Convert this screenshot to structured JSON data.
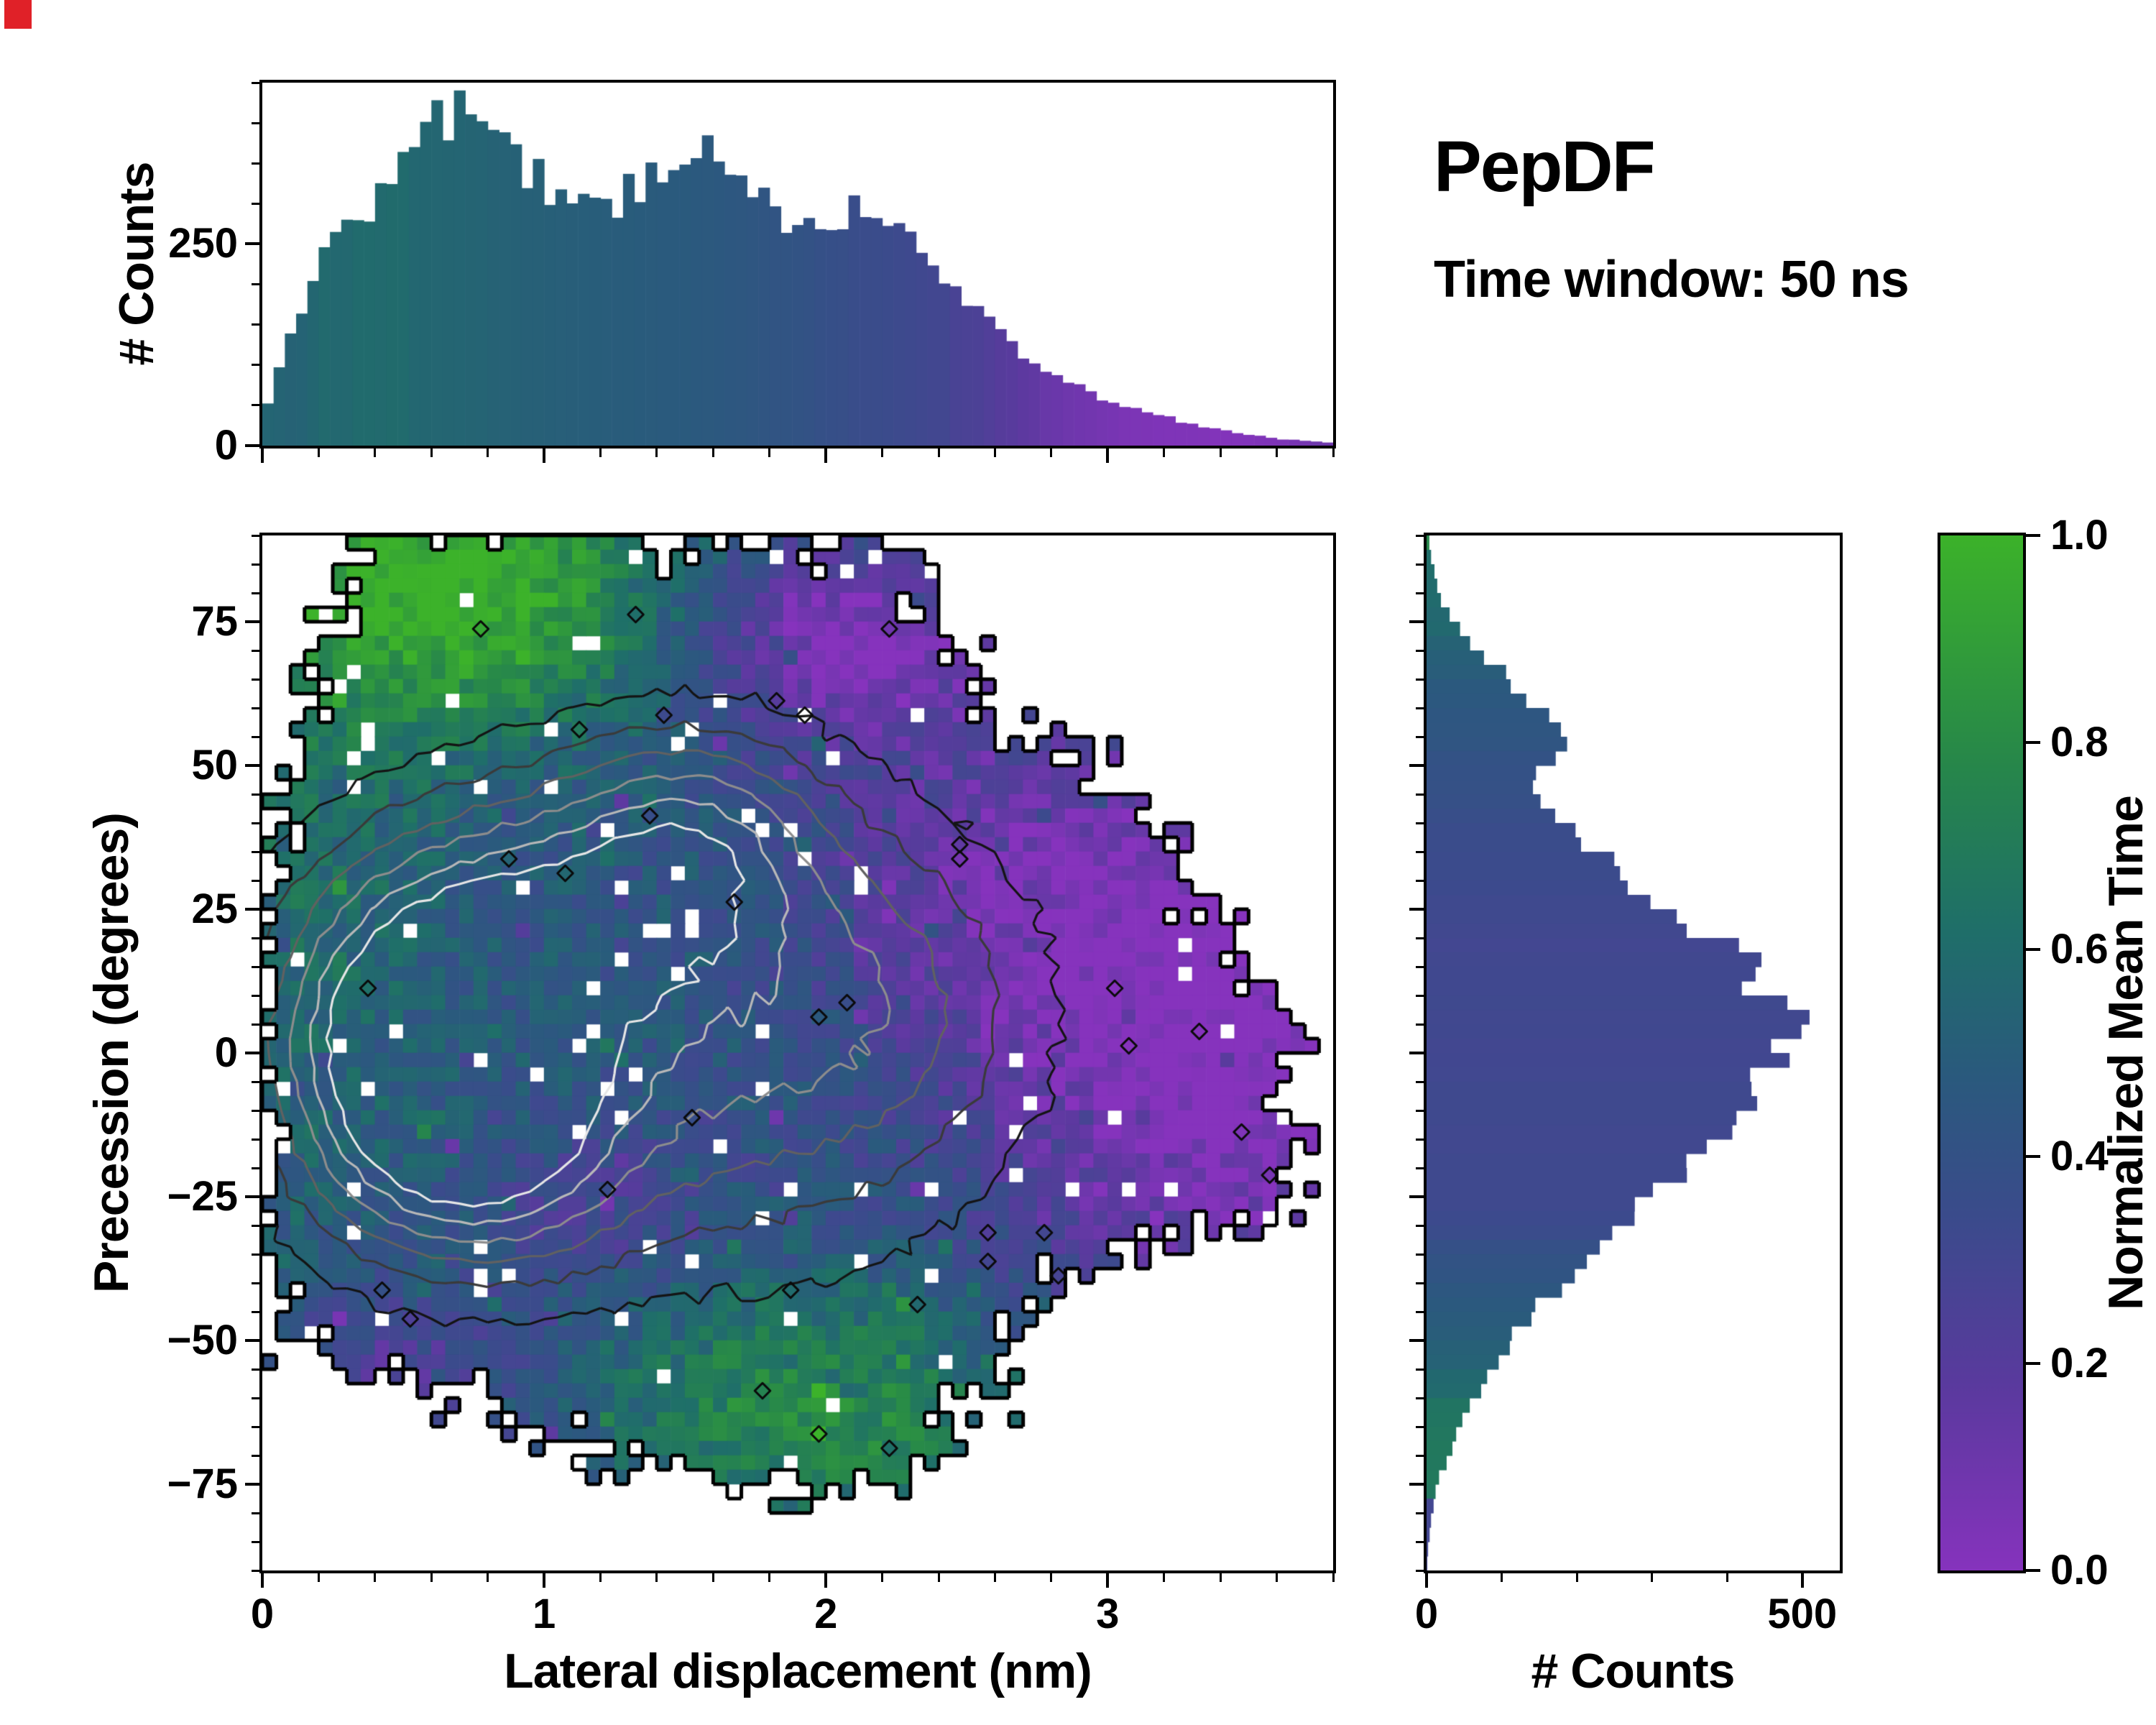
{
  "title": {
    "text": "PepDF",
    "subtitle": "Time window: 50 ns"
  },
  "artifacts": {
    "corner_marker_color": "#e02128"
  },
  "chart_data": [
    {
      "id": "top-histogram",
      "type": "bar",
      "orientation": "vertical",
      "ylabel": "# Counts",
      "xlim": [
        0,
        3.8
      ],
      "ylim": [
        0,
        450
      ],
      "bin_start": 0,
      "bin_width": 0.04,
      "yticks": {
        "values": [
          0,
          250
        ],
        "labels": [
          "0",
          "250"
        ]
      },
      "xticks": {
        "values": [
          0,
          1,
          2,
          3
        ],
        "labels": [
          "",
          "",
          "",
          ""
        ]
      },
      "xminor_step": 0.2,
      "yminor_step": 50,
      "bar_coloring": "colormap of column mean normalized time",
      "values": [
        55,
        95,
        140,
        175,
        205,
        235,
        255,
        275,
        265,
        285,
        305,
        330,
        350,
        370,
        395,
        420,
        405,
        430,
        415,
        390,
        380,
        365,
        350,
        340,
        335,
        320,
        310,
        300,
        295,
        305,
        290,
        300,
        315,
        310,
        330,
        345,
        335,
        355,
        365,
        375,
        350,
        340,
        330,
        315,
        300,
        290,
        280,
        270,
        280,
        262,
        272,
        282,
        292,
        302,
        288,
        278,
        268,
        252,
        240,
        228,
        210,
        192,
        175,
        162,
        150,
        138,
        122,
        110,
        100,
        92,
        85,
        78,
        72,
        66,
        60,
        55,
        50,
        46,
        42,
        38,
        34,
        30,
        27,
        24,
        21,
        18,
        16,
        14,
        12,
        10,
        8,
        7,
        6,
        5,
        4
      ]
    },
    {
      "id": "joint-distribution-heatmap",
      "type": "heatmap",
      "xlabel": "Lateral displacement (nm)",
      "ylabel": "Precession (degrees)",
      "xlim": [
        0,
        3.8
      ],
      "ylim": [
        -90,
        90
      ],
      "xticks": {
        "values": [
          0,
          1,
          2,
          3
        ],
        "labels": [
          "0",
          "1",
          "2",
          "3"
        ]
      },
      "yticks": {
        "values": [
          75,
          50,
          25,
          0,
          -25,
          -50,
          -75
        ],
        "labels": [
          "75",
          "50",
          "25",
          "0",
          "−25",
          "−50",
          "−75"
        ]
      },
      "xminor_step": 0.2,
      "yminor_step": 5,
      "value_label": "Normalized Mean Time",
      "value_range": [
        0,
        1
      ],
      "grid_bins": [
        76,
        72
      ],
      "colormap_stops": [
        [
          0,
          "#8633bd"
        ],
        [
          0.18,
          "#5a3a9e"
        ],
        [
          0.34,
          "#3b4b8c"
        ],
        [
          0.48,
          "#2a5a7d"
        ],
        [
          0.62,
          "#1f6f69"
        ],
        [
          0.78,
          "#27874a"
        ],
        [
          1,
          "#3cb22a"
        ]
      ],
      "mask_polygon": [
        [
          0.32,
          91
        ],
        [
          0.55,
          93
        ],
        [
          0.9,
          91
        ],
        [
          1.22,
          93
        ],
        [
          1.38,
          87
        ],
        [
          1.65,
          89
        ],
        [
          2.05,
          87
        ],
        [
          2.28,
          90
        ],
        [
          2.4,
          83
        ],
        [
          2.33,
          74
        ],
        [
          2.52,
          68
        ],
        [
          2.6,
          57
        ],
        [
          2.78,
          54
        ],
        [
          2.95,
          52
        ],
        [
          3.02,
          44
        ],
        [
          3.3,
          36
        ],
        [
          3.28,
          27
        ],
        [
          3.55,
          20
        ],
        [
          3.5,
          10
        ],
        [
          3.75,
          0
        ],
        [
          3.58,
          -8
        ],
        [
          3.7,
          -13
        ],
        [
          3.62,
          -22
        ],
        [
          3.72,
          -28
        ],
        [
          3.45,
          -31
        ],
        [
          3.12,
          -34
        ],
        [
          2.92,
          -40
        ],
        [
          2.78,
          -39
        ],
        [
          2.72,
          -49
        ],
        [
          2.56,
          -54
        ],
        [
          2.6,
          -62
        ],
        [
          2.44,
          -60
        ],
        [
          2.42,
          -70
        ],
        [
          2.28,
          -76
        ],
        [
          2.1,
          -71
        ],
        [
          1.93,
          -78
        ],
        [
          1.55,
          -74
        ],
        [
          1.38,
          -69
        ],
        [
          1.15,
          -72
        ],
        [
          1.0,
          -64
        ],
        [
          0.86,
          -68
        ],
        [
          0.76,
          -59
        ],
        [
          0.55,
          -62
        ],
        [
          0.5,
          -54
        ],
        [
          0.3,
          -56
        ],
        [
          0.25,
          -49
        ],
        [
          0.1,
          -51
        ],
        [
          0.05,
          -44
        ],
        [
          0.02,
          -28
        ],
        [
          0.02,
          28
        ],
        [
          0.08,
          44
        ],
        [
          0.2,
          57
        ],
        [
          0.17,
          69
        ],
        [
          0.3,
          79
        ]
      ],
      "field": {
        "base": 0.45,
        "noise_amp": 0.24,
        "speckle_prob": 0.07,
        "speckle_amp": 0.45,
        "hole_prob": 0.03,
        "bumps": [
          {
            "x": 0.7,
            "y": 80,
            "sx": 0.8,
            "sy": 24,
            "amp": 0.55
          },
          {
            "x": 0.15,
            "y": 25,
            "sx": 0.5,
            "sy": 50,
            "amp": 0.15
          },
          {
            "x": 2.0,
            "y": -62,
            "sx": 0.8,
            "sy": 22,
            "amp": 0.35
          },
          {
            "x": 3.4,
            "y": 5,
            "sx": 0.9,
            "sy": 55,
            "amp": -0.5
          },
          {
            "x": 2.05,
            "y": 72,
            "sx": 0.55,
            "sy": 18,
            "amp": -0.45
          },
          {
            "x": 2.5,
            "y": 30,
            "sx": 0.6,
            "sy": 30,
            "amp": -0.2
          },
          {
            "x": 0.45,
            "y": -58,
            "sx": 0.5,
            "sy": 16,
            "amp": -0.25
          },
          {
            "x": 1.2,
            "y": -28,
            "sx": 0.45,
            "sy": 14,
            "amp": -0.18
          }
        ]
      },
      "density": {
        "noise": 0.05,
        "bumps": [
          {
            "x": 0.5,
            "y": 2,
            "sx": 0.5,
            "sy": 30,
            "amp": 0.95
          },
          {
            "x": 1.05,
            "y": 22,
            "sx": 0.6,
            "sy": 26,
            "amp": 0.6
          },
          {
            "x": 1.55,
            "y": 38,
            "sx": 0.45,
            "sy": 20,
            "amp": 0.45
          },
          {
            "x": 0.85,
            "y": -18,
            "sx": 0.5,
            "sy": 20,
            "amp": 0.55
          },
          {
            "x": 1.7,
            "y": 0,
            "sx": 0.9,
            "sy": 40,
            "amp": 0.45
          },
          {
            "x": 2.2,
            "y": 12,
            "sx": 0.55,
            "sy": 28,
            "amp": 0.25
          }
        ],
        "levels": [
          {
            "level": 0.16,
            "color": "#141414"
          },
          {
            "level": 0.3,
            "color": "#3a3a3a"
          },
          {
            "level": 0.44,
            "color": "#616161"
          },
          {
            "level": 0.58,
            "color": "#8d8d8d"
          },
          {
            "level": 0.72,
            "color": "#b8b8b8"
          },
          {
            "level": 0.85,
            "color": "#e6e6e6"
          }
        ]
      }
    },
    {
      "id": "right-histogram",
      "type": "bar",
      "orientation": "horizontal",
      "xlabel": "# Counts",
      "xlim": [
        0,
        550
      ],
      "ylim": [
        -90,
        90
      ],
      "bin_start": 90,
      "bin_width": -2.5,
      "xticks": {
        "values": [
          0,
          500
        ],
        "labels": [
          "0",
          "500"
        ]
      },
      "xminor_step": 100,
      "yminor_step": 5,
      "bar_coloring": "colormap of row mean normalized time",
      "values": [
        4,
        6,
        10,
        14,
        20,
        30,
        45,
        60,
        80,
        100,
        120,
        140,
        165,
        180,
        175,
        165,
        155,
        150,
        160,
        175,
        195,
        215,
        240,
        265,
        290,
        315,
        345,
        370,
        395,
        420,
        445,
        430,
        460,
        480,
        500,
        490,
        470,
        455,
        440,
        420,
        400,
        380,
        365,
        345,
        325,
        305,
        285,
        265,
        245,
        225,
        205,
        185,
        168,
        150,
        135,
        120,
        105,
        92,
        80,
        68,
        58,
        48,
        40,
        32,
        25,
        18,
        13,
        9,
        6,
        4,
        2,
        1
      ]
    },
    {
      "id": "colorbar",
      "type": "colorbar",
      "label": "Normalized Mean Time",
      "range": [
        0,
        1
      ],
      "ticks": {
        "values": [
          0,
          0.2,
          0.4,
          0.6,
          0.8,
          1
        ],
        "labels": [
          "0.0",
          "0.2",
          "0.4",
          "0.6",
          "0.8",
          "1.0"
        ]
      },
      "stops": [
        [
          0,
          "#8633bd"
        ],
        [
          0.18,
          "#5a3a9e"
        ],
        [
          0.34,
          "#3b4b8c"
        ],
        [
          0.48,
          "#2a5a7d"
        ],
        [
          0.62,
          "#1f6f69"
        ],
        [
          0.78,
          "#27874a"
        ],
        [
          1,
          "#3cb22a"
        ]
      ]
    }
  ]
}
